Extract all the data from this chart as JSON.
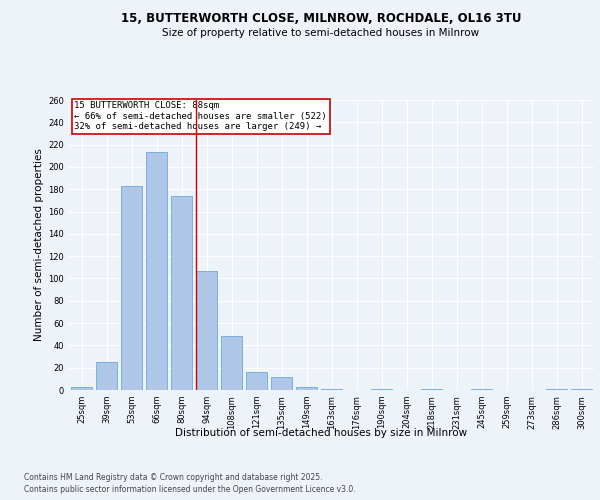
{
  "title_line1": "15, BUTTERWORTH CLOSE, MILNROW, ROCHDALE, OL16 3TU",
  "title_line2": "Size of property relative to semi-detached houses in Milnrow",
  "xlabel": "Distribution of semi-detached houses by size in Milnrow",
  "ylabel": "Number of semi-detached properties",
  "categories": [
    "25sqm",
    "39sqm",
    "53sqm",
    "66sqm",
    "80sqm",
    "94sqm",
    "108sqm",
    "121sqm",
    "135sqm",
    "149sqm",
    "163sqm",
    "176sqm",
    "190sqm",
    "204sqm",
    "218sqm",
    "231sqm",
    "245sqm",
    "259sqm",
    "273sqm",
    "286sqm",
    "300sqm"
  ],
  "values": [
    3,
    25,
    183,
    213,
    174,
    107,
    48,
    16,
    12,
    3,
    1,
    0,
    1,
    0,
    1,
    0,
    1,
    0,
    0,
    1,
    1
  ],
  "bar_color": "#aec6e8",
  "bar_edge_color": "#5a9fd4",
  "vline_x_index": 4.57,
  "vline_color": "#cc0000",
  "annotation_text": "15 BUTTERWORTH CLOSE: 88sqm\n← 66% of semi-detached houses are smaller (522)\n32% of semi-detached houses are larger (249) →",
  "annotation_box_color": "#cc0000",
  "ylim": [
    0,
    260
  ],
  "yticks": [
    0,
    20,
    40,
    60,
    80,
    100,
    120,
    140,
    160,
    180,
    200,
    220,
    240,
    260
  ],
  "footer_line1": "Contains HM Land Registry data © Crown copyright and database right 2025.",
  "footer_line2": "Contains public sector information licensed under the Open Government Licence v3.0.",
  "background_color": "#eef2f9",
  "grid_color": "#ffffff",
  "title_fontsize": 8.5,
  "subtitle_fontsize": 7.5,
  "axis_label_fontsize": 7.5,
  "tick_fontsize": 6,
  "annotation_fontsize": 6.5,
  "footer_fontsize": 5.5
}
